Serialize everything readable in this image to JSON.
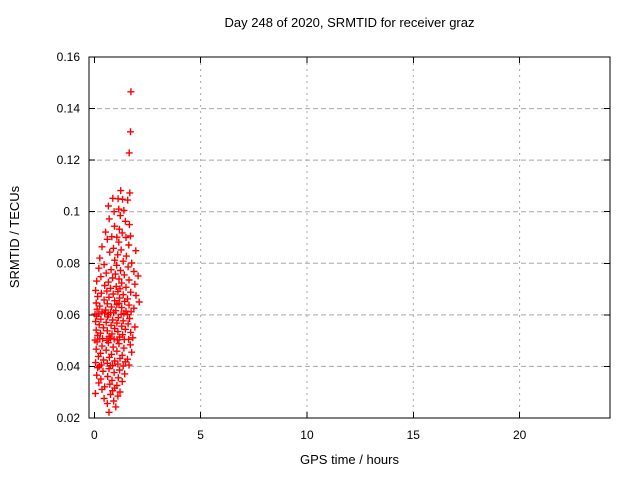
{
  "title": "Day 248 of 2020, SRMTID for receiver graz",
  "chart_data": {
    "type": "scatter",
    "title": "Day 248 of 2020, SRMTID for receiver graz",
    "xlabel": "GPS time / hours",
    "ylabel": "SRMTID / TECUs",
    "xlim": [
      -0.25,
      24.25
    ],
    "ylim": [
      0.02,
      0.16
    ],
    "xticks": [
      0,
      5,
      10,
      15,
      20
    ],
    "xtick_labels": [
      "0",
      "5",
      "10",
      "15",
      "20"
    ],
    "yticks": [
      0.02,
      0.04,
      0.06,
      0.08,
      0.1,
      0.12,
      0.14,
      0.16
    ],
    "ytick_labels": [
      "0.02",
      "0.04",
      "0.06",
      "0.08",
      "0.1",
      "0.12",
      "0.14",
      "0.16"
    ],
    "grid": true,
    "legend": "none",
    "marker": "plus",
    "marker_color": "#ff0000",
    "grid_color": "#a8a8a8",
    "axis_color": "#000000",
    "series": [
      {
        "name": "SRMTID",
        "points": [
          [
            1.72,
            0.1465
          ],
          [
            1.7,
            0.131
          ],
          [
            1.64,
            0.1228
          ],
          [
            1.24,
            0.1082
          ],
          [
            1.67,
            0.1073
          ],
          [
            0.87,
            0.1052
          ],
          [
            1.12,
            0.105
          ],
          [
            1.33,
            0.1048
          ],
          [
            1.57,
            0.1045
          ],
          [
            0.66,
            0.1022
          ],
          [
            1.15,
            0.101
          ],
          [
            1.39,
            0.1005
          ],
          [
            0.93,
            0.1
          ],
          [
            1.22,
            0.0985
          ],
          [
            0.7,
            0.0972
          ],
          [
            1.46,
            0.0963
          ],
          [
            1.65,
            0.095
          ],
          [
            0.95,
            0.0944
          ],
          [
            1.18,
            0.0932
          ],
          [
            0.53,
            0.0921
          ],
          [
            1.31,
            0.0918
          ],
          [
            1.7,
            0.0906
          ],
          [
            0.82,
            0.0903
          ],
          [
            1.06,
            0.0901
          ],
          [
            1.49,
            0.09
          ],
          [
            0.61,
            0.0893
          ],
          [
            1.15,
            0.0882
          ],
          [
            1.62,
            0.0871
          ],
          [
            0.36,
            0.0864
          ],
          [
            0.9,
            0.0858
          ],
          [
            1.26,
            0.0852
          ],
          [
            1.95,
            0.0849
          ],
          [
            0.73,
            0.0843
          ],
          [
            1.1,
            0.0833
          ],
          [
            1.51,
            0.0828
          ],
          [
            0.26,
            0.082
          ],
          [
            0.96,
            0.0812
          ],
          [
            1.36,
            0.0808
          ],
          [
            1.76,
            0.0801
          ],
          [
            0.46,
            0.0795
          ],
          [
            1.05,
            0.0792
          ],
          [
            1.59,
            0.0786
          ],
          [
            0.21,
            0.0781
          ],
          [
            0.79,
            0.0775
          ],
          [
            1.23,
            0.0772
          ],
          [
            1.86,
            0.0768
          ],
          [
            0.56,
            0.0762
          ],
          [
            0.99,
            0.0758
          ],
          [
            1.41,
            0.0755
          ],
          [
            2.06,
            0.0751
          ],
          [
            0.31,
            0.0748
          ],
          [
            0.86,
            0.0743
          ],
          [
            1.16,
            0.0739
          ],
          [
            1.63,
            0.0735
          ],
          [
            0.11,
            0.0731
          ],
          [
            0.66,
            0.0727
          ],
          [
            1.29,
            0.0723
          ],
          [
            1.91,
            0.0719
          ],
          [
            0.49,
            0.0714
          ],
          [
            1.03,
            0.071
          ],
          [
            1.49,
            0.0707
          ],
          [
            0.76,
            0.0703
          ],
          [
            1.21,
            0.0701
          ],
          [
            0.06,
            0.0695
          ],
          [
            0.59,
            0.0692
          ],
          [
            1.11,
            0.069
          ],
          [
            1.71,
            0.0688
          ],
          [
            0.33,
            0.0684
          ],
          [
            0.89,
            0.0681
          ],
          [
            1.36,
            0.0678
          ],
          [
            1.96,
            0.0675
          ],
          [
            0.16,
            0.0671
          ],
          [
            0.69,
            0.0668
          ],
          [
            1.19,
            0.0665
          ],
          [
            1.56,
            0.0662
          ],
          [
            0.46,
            0.0658
          ],
          [
            0.96,
            0.0655
          ],
          [
            1.43,
            0.0652
          ],
          [
            2.11,
            0.065
          ],
          [
            0.09,
            0.0646
          ],
          [
            0.61,
            0.0643
          ],
          [
            1.06,
            0.064
          ],
          [
            1.63,
            0.0638
          ],
          [
            0.26,
            0.0634
          ],
          [
            0.81,
            0.0631
          ],
          [
            1.29,
            0.0628
          ],
          [
            1.86,
            0.0626
          ],
          [
            0.13,
            0.0622
          ],
          [
            0.53,
            0.0619
          ],
          [
            1.01,
            0.0616
          ],
          [
            1.49,
            0.0614
          ],
          [
            0.36,
            0.0611
          ],
          [
            0.91,
            0.0608
          ],
          [
            1.39,
            0.0606
          ],
          [
            0.03,
            0.0603
          ],
          [
            0.66,
            0.0601
          ],
          [
            1.16,
            0.0645
          ],
          [
            1.73,
            0.0612
          ],
          [
            0.21,
            0.0604
          ],
          [
            0.76,
            0.0609
          ],
          [
            1.26,
            0.0602
          ],
          [
            0.49,
            0.0607
          ],
          [
            1.56,
            0.0601
          ],
          [
            0.11,
            0.0595
          ],
          [
            0.63,
            0.0592
          ],
          [
            1.13,
            0.0589
          ],
          [
            1.66,
            0.0586
          ],
          [
            0.31,
            0.0583
          ],
          [
            0.86,
            0.058
          ],
          [
            1.36,
            0.0577
          ],
          [
            0.06,
            0.0574
          ],
          [
            0.56,
            0.0571
          ],
          [
            1.06,
            0.0568
          ],
          [
            1.59,
            0.0565
          ],
          [
            0.23,
            0.0562
          ],
          [
            0.79,
            0.0559
          ],
          [
            1.29,
            0.0556
          ],
          [
            1.91,
            0.0553
          ],
          [
            0.43,
            0.055
          ],
          [
            0.96,
            0.0547
          ],
          [
            1.46,
            0.0544
          ],
          [
            0.09,
            0.0541
          ],
          [
            0.61,
            0.0538
          ],
          [
            1.11,
            0.0535
          ],
          [
            1.71,
            0.0532
          ],
          [
            0.29,
            0.0529
          ],
          [
            0.83,
            0.0526
          ],
          [
            1.33,
            0.0523
          ],
          [
            0.16,
            0.052
          ],
          [
            0.69,
            0.0517
          ],
          [
            1.19,
            0.0514
          ],
          [
            1.81,
            0.0511
          ],
          [
            0.39,
            0.0508
          ],
          [
            0.93,
            0.0506
          ],
          [
            1.41,
            0.0504
          ],
          [
            0.03,
            0.0502
          ],
          [
            0.59,
            0.0501
          ],
          [
            1.09,
            0.0503
          ],
          [
            1.61,
            0.0505
          ],
          [
            0.26,
            0.0507
          ],
          [
            0.76,
            0.0509
          ],
          [
            0.13,
            0.0495
          ],
          [
            0.66,
            0.0492
          ],
          [
            1.16,
            0.0488
          ],
          [
            1.69,
            0.0484
          ],
          [
            0.36,
            0.0479
          ],
          [
            0.89,
            0.0475
          ],
          [
            1.39,
            0.0471
          ],
          [
            0.09,
            0.0467
          ],
          [
            0.56,
            0.0463
          ],
          [
            1.06,
            0.0459
          ],
          [
            1.76,
            0.0455
          ],
          [
            0.29,
            0.0451
          ],
          [
            0.81,
            0.0447
          ],
          [
            1.31,
            0.0443
          ],
          [
            0.19,
            0.0439
          ],
          [
            0.71,
            0.0435
          ],
          [
            1.21,
            0.0431
          ],
          [
            1.56,
            0.0428
          ],
          [
            0.43,
            0.0425
          ],
          [
            0.96,
            0.0421
          ],
          [
            1.46,
            0.0418
          ],
          [
            0.06,
            0.0415
          ],
          [
            0.61,
            0.0412
          ],
          [
            1.11,
            0.0409
          ],
          [
            0.33,
            0.0406
          ],
          [
            0.86,
            0.0404
          ],
          [
            1.36,
            0.0402
          ],
          [
            0.23,
            0.0401
          ],
          [
            0.76,
            0.0403
          ],
          [
            1.63,
            0.0405
          ],
          [
            0.16,
            0.0395
          ],
          [
            0.69,
            0.0391
          ],
          [
            1.19,
            0.0386
          ],
          [
            0.41,
            0.0381
          ],
          [
            0.93,
            0.0376
          ],
          [
            1.43,
            0.0371
          ],
          [
            0.11,
            0.0366
          ],
          [
            0.63,
            0.0361
          ],
          [
            1.13,
            0.0356
          ],
          [
            0.31,
            0.0351
          ],
          [
            0.83,
            0.0346
          ],
          [
            1.31,
            0.0341
          ],
          [
            0.21,
            0.0336
          ],
          [
            0.73,
            0.0331
          ],
          [
            1.06,
            0.0326
          ],
          [
            0.49,
            0.0321
          ],
          [
            0.96,
            0.0316
          ],
          [
            0.36,
            0.0311
          ],
          [
            0.86,
            0.0306
          ],
          [
            1.21,
            0.0301
          ],
          [
            0.05,
            0.0295
          ],
          [
            0.76,
            0.0291
          ],
          [
            1.11,
            0.0285
          ],
          [
            0.46,
            0.0276
          ],
          [
            0.91,
            0.0266
          ],
          [
            0.61,
            0.0256
          ],
          [
            1.01,
            0.0243
          ],
          [
            0.69,
            0.0222
          ]
        ]
      }
    ]
  }
}
